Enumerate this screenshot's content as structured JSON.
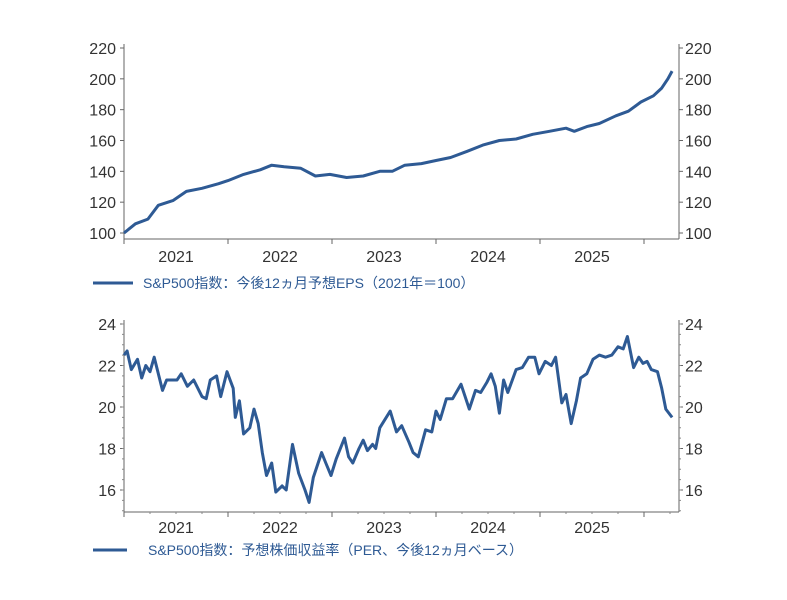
{
  "chart_data": [
    {
      "type": "line",
      "title": "",
      "xlabel": "",
      "ylabel": "",
      "ylim": [
        100,
        220
      ],
      "yticks": [
        "100",
        "120",
        "140",
        "160",
        "180",
        "200",
        "220"
      ],
      "xlim": [
        2021,
        2026.3
      ],
      "xticks": [
        "2021",
        "2022",
        "2023",
        "2024",
        "2025"
      ],
      "legend": "bottom-left",
      "color": "#2e5a94",
      "series": [
        {
          "name": "S&P500指数：今後12ヵ月予想EPS（2021年＝100）",
          "x": [
            2021.0,
            2021.11,
            2021.23,
            2021.33,
            2021.47,
            2021.6,
            2021.75,
            2021.91,
            2022.0,
            2022.15,
            2022.31,
            2022.42,
            2022.54,
            2022.7,
            2022.84,
            2022.98,
            2023.14,
            2023.3,
            2023.46,
            2023.58,
            2023.7,
            2023.86,
            2024.0,
            2024.14,
            2024.3,
            2024.45,
            2024.61,
            2024.77,
            2024.93,
            2025.09,
            2025.25,
            2025.33,
            2025.45,
            2025.57,
            2025.73,
            2025.85,
            2025.97,
            2026.09,
            2026.17,
            2026.23,
            2026.27
          ],
          "y": [
            100,
            106,
            109,
            118,
            121,
            127,
            129,
            132,
            134,
            138,
            141,
            144,
            143,
            142,
            137,
            138,
            136,
            137,
            140,
            140,
            144,
            145,
            147,
            149,
            153,
            157,
            160,
            161,
            164,
            166,
            168,
            166,
            169,
            171,
            176,
            179,
            185,
            189,
            194,
            200,
            205
          ]
        }
      ]
    },
    {
      "type": "line",
      "title": "",
      "xlabel": "",
      "ylabel": "",
      "ylim": [
        15,
        24
      ],
      "yticks": [
        "16",
        "18",
        "20",
        "22",
        "24"
      ],
      "xlim": [
        2021,
        2026.3
      ],
      "xticks": [
        "2021",
        "2022",
        "2023",
        "2024",
        "2025"
      ],
      "legend": "bottom-left",
      "color": "#2e5a94",
      "series": [
        {
          "name": "S&P500指数：予想株価収益率（PER、今後12ヵ月ベース）",
          "x": [
            2021.0,
            2021.03,
            2021.07,
            2021.13,
            2021.17,
            2021.21,
            2021.25,
            2021.29,
            2021.37,
            2021.41,
            2021.51,
            2021.55,
            2021.61,
            2021.67,
            2021.75,
            2021.79,
            2021.83,
            2021.89,
            2021.93,
            2021.99,
            2022.05,
            2022.07,
            2022.11,
            2022.15,
            2022.21,
            2022.25,
            2022.29,
            2022.33,
            2022.37,
            2022.42,
            2022.46,
            2022.52,
            2022.56,
            2022.62,
            2022.68,
            2022.74,
            2022.78,
            2022.82,
            2022.9,
            2022.94,
            2022.99,
            2023.04,
            2023.12,
            2023.16,
            2023.2,
            2023.26,
            2023.3,
            2023.34,
            2023.39,
            2023.42,
            2023.46,
            2023.56,
            2023.62,
            2023.67,
            2023.74,
            2023.78,
            2023.83,
            2023.9,
            2023.96,
            2024.0,
            2024.04,
            2024.1,
            2024.16,
            2024.24,
            2024.32,
            2024.38,
            2024.43,
            2024.49,
            2024.53,
            2024.57,
            2024.61,
            2024.65,
            2024.69,
            2024.77,
            2024.83,
            2024.89,
            2024.95,
            2024.99,
            2025.05,
            2025.11,
            2025.15,
            2025.21,
            2025.25,
            2025.3,
            2025.35,
            2025.39,
            2025.45,
            2025.51,
            2025.57,
            2025.63,
            2025.69,
            2025.75,
            2025.8,
            2025.84,
            2025.9,
            2025.95,
            2025.99,
            2026.03,
            2026.07,
            2026.13,
            2026.17,
            2026.21,
            2026.27
          ],
          "y": [
            22.5,
            22.7,
            21.8,
            22.3,
            21.4,
            22.0,
            21.7,
            22.4,
            20.8,
            21.3,
            21.3,
            21.6,
            21.0,
            21.3,
            20.5,
            20.4,
            21.3,
            21.5,
            20.5,
            21.7,
            20.9,
            19.5,
            20.3,
            18.7,
            19.0,
            19.9,
            19.2,
            17.8,
            16.7,
            17.3,
            15.9,
            16.2,
            16.0,
            18.2,
            16.8,
            16.0,
            15.4,
            16.6,
            17.8,
            17.3,
            16.7,
            17.5,
            18.5,
            17.6,
            17.3,
            18.0,
            18.4,
            17.9,
            18.2,
            18.0,
            19.0,
            19.8,
            18.8,
            19.1,
            18.3,
            17.8,
            17.6,
            18.9,
            18.8,
            19.8,
            19.4,
            20.4,
            20.4,
            21.1,
            19.9,
            20.8,
            20.7,
            21.2,
            21.6,
            21.0,
            19.7,
            21.3,
            20.7,
            21.8,
            21.9,
            22.4,
            22.4,
            21.6,
            22.2,
            22.0,
            22.4,
            20.2,
            20.6,
            19.2,
            20.3,
            21.4,
            21.6,
            22.3,
            22.5,
            22.4,
            22.5,
            22.9,
            22.8,
            23.4,
            21.9,
            22.4,
            22.1,
            22.2,
            21.8,
            21.7,
            20.9,
            19.9,
            19.5
          ]
        }
      ]
    }
  ]
}
